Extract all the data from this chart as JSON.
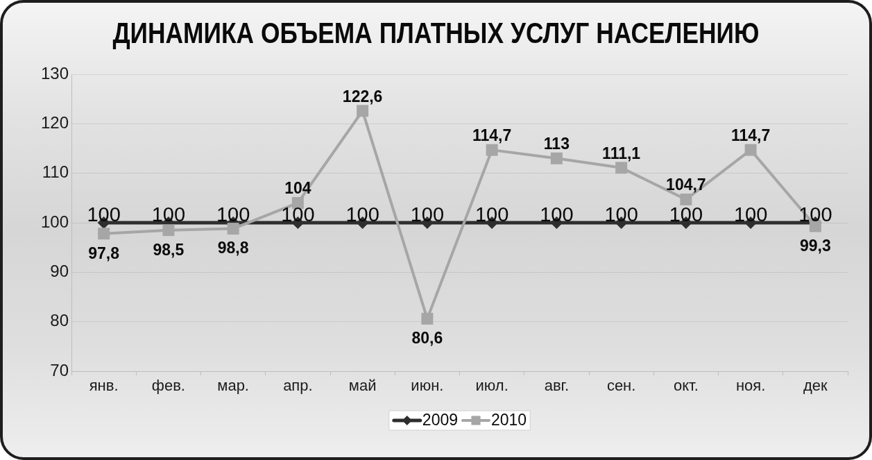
{
  "chart_data": {
    "type": "line",
    "title": "ДИНАМИКА ОБЪЕМА ПЛАТНЫХ УСЛУГ НАСЕЛЕНИЮ",
    "categories": [
      "янв.",
      "фев.",
      "мар.",
      "апр.",
      "май",
      "июн.",
      "июл.",
      "авг.",
      "сен.",
      "окт.",
      "ноя.",
      "дек"
    ],
    "series": [
      {
        "name": "2009",
        "color": "#2e2e2e",
        "marker": "diamond",
        "values": [
          100,
          100,
          100,
          100,
          100,
          100,
          100,
          100,
          100,
          100,
          100,
          100
        ],
        "value_labels": [
          "100",
          "100",
          "100",
          "100",
          "100",
          "100",
          "100",
          "100",
          "100",
          "100",
          "100",
          "100"
        ]
      },
      {
        "name": "2010",
        "color": "#a6a6a6",
        "marker": "square",
        "values": [
          97.8,
          98.5,
          98.8,
          104,
          122.6,
          80.6,
          114.7,
          113,
          111.1,
          104.7,
          114.7,
          99.3
        ],
        "value_labels": [
          "97,8",
          "98,5",
          "98,8",
          "104",
          "122,6",
          "80,6",
          "114,7",
          "113",
          "111,1",
          "104,7",
          "114,7",
          "99,3"
        ]
      }
    ],
    "ylim": [
      70,
      130
    ],
    "yticks": [
      70,
      80,
      90,
      100,
      110,
      120,
      130
    ],
    "grid": "y",
    "legend": "bottom"
  }
}
